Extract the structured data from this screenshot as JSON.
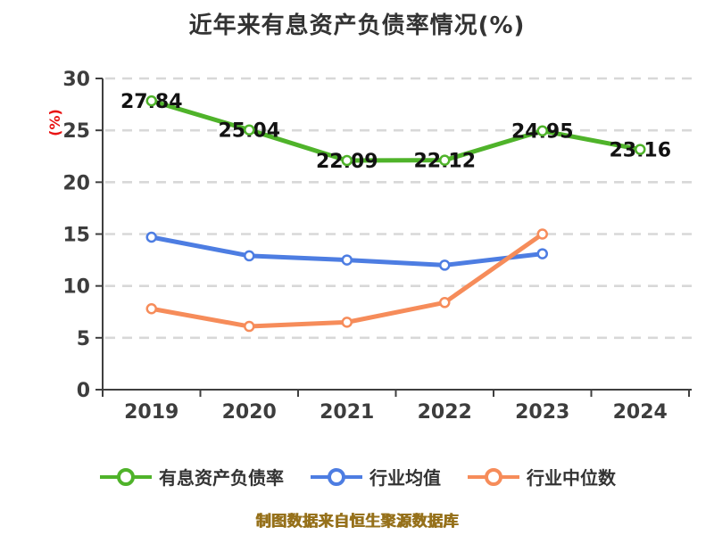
{
  "title": "近年来有息资产负债率情况(%)",
  "y_axis_title": "(%)",
  "footer_note": "制图数据来自恒生聚源数据库",
  "colors": {
    "background": "#ffffff",
    "title_text": "#333333",
    "axis": "#3f3f3f",
    "tick_text": "#3d3d3d",
    "grid": "#d8d8d8",
    "data_label_text": "#121212",
    "y_axis_title_text": "#e81414",
    "footer_text": "#96711b",
    "marker_fill": "#ffffff"
  },
  "chart_data": {
    "type": "line",
    "title": "近年来有息资产负债率情况(%)",
    "xlabel": "",
    "ylabel": "(%)",
    "categories": [
      "2019",
      "2020",
      "2021",
      "2022",
      "2023",
      "2024"
    ],
    "ylim": [
      0,
      30
    ],
    "ytick_step": 5,
    "yticks": [
      0,
      5,
      10,
      15,
      20,
      25,
      30
    ],
    "grid": "horizontal-dashed",
    "legend_position": "bottom",
    "series": [
      {
        "name": "有息资产负债率",
        "color": "#4fb32a",
        "values": [
          27.84,
          25.04,
          22.09,
          22.12,
          24.95,
          23.16
        ],
        "data_labels": [
          "27.84",
          "25.04",
          "22.09",
          "22.12",
          "24.95",
          "23.16"
        ],
        "show_labels": true
      },
      {
        "name": "行业均值",
        "color": "#4d7de2",
        "values": [
          14.7,
          12.9,
          12.5,
          12.0,
          13.1
        ],
        "show_labels": false
      },
      {
        "name": "行业中位数",
        "color": "#f68c5a",
        "values": [
          7.8,
          6.1,
          6.5,
          8.4,
          15.0
        ],
        "show_labels": false
      }
    ]
  }
}
